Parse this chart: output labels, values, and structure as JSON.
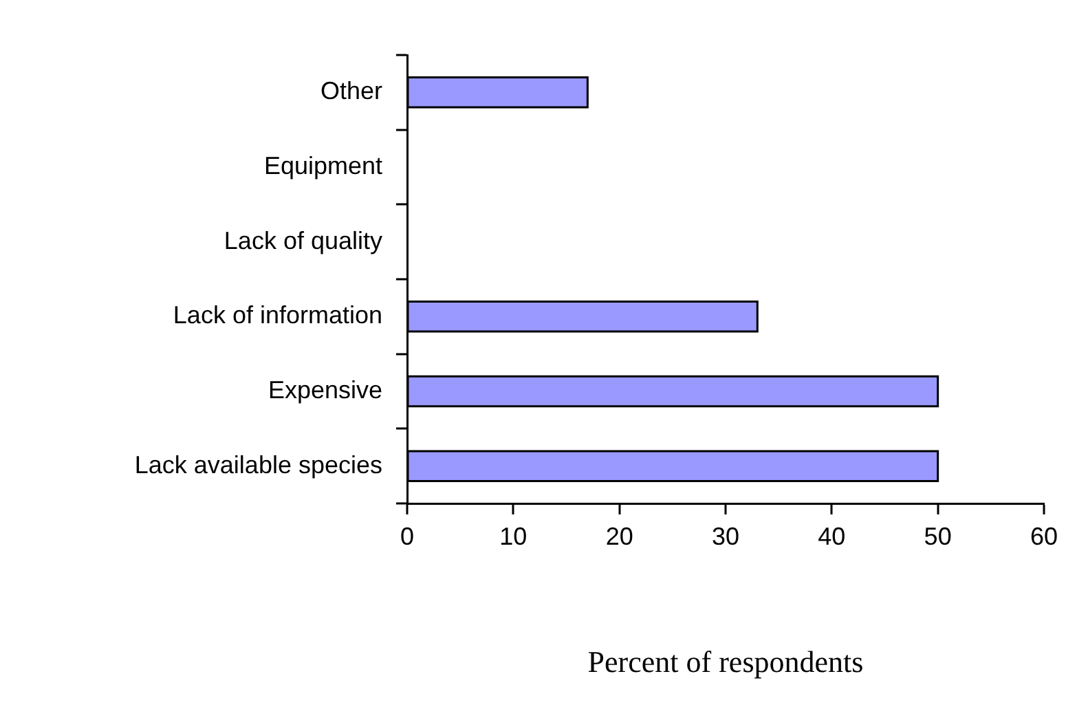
{
  "chart_data": {
    "type": "bar",
    "orientation": "horizontal",
    "xlabel": "Percent of respondents",
    "categories": [
      "Other",
      "Equipment",
      "Lack of quality",
      "Lack of information",
      "Expensive",
      "Lack available species"
    ],
    "values": [
      17,
      0,
      0,
      33,
      50,
      50
    ],
    "color": "#9999ff",
    "xlim": [
      0,
      60
    ],
    "xticks": [
      0,
      10,
      20,
      30,
      40,
      50,
      60
    ],
    "grid": false,
    "legend": false
  }
}
